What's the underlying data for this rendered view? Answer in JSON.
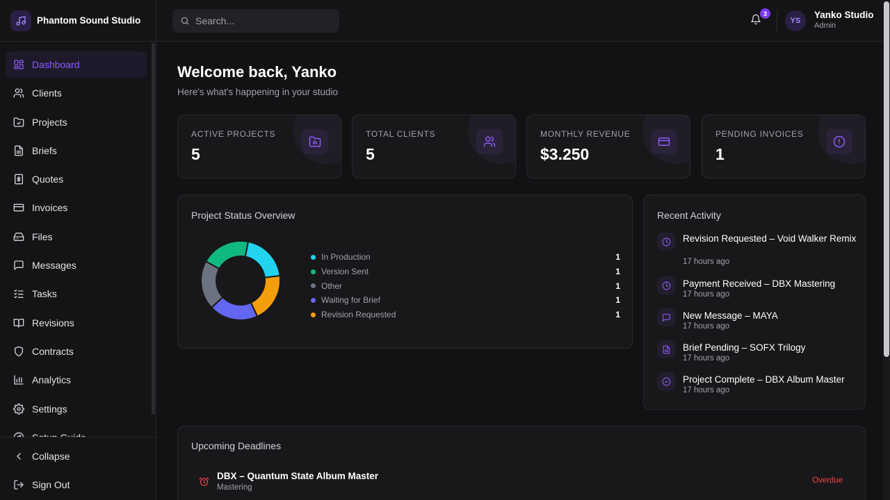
{
  "app": {
    "name": "Phantom Sound Studio"
  },
  "sidebar": {
    "items": [
      {
        "label": "Dashboard",
        "icon": "dashboard-icon",
        "active": true
      },
      {
        "label": "Clients",
        "icon": "users-icon"
      },
      {
        "label": "Projects",
        "icon": "folder-icon"
      },
      {
        "label": "Briefs",
        "icon": "document-icon"
      },
      {
        "label": "Quotes",
        "icon": "receipt-icon"
      },
      {
        "label": "Invoices",
        "icon": "credit-card-icon"
      },
      {
        "label": "Files",
        "icon": "hard-drive-icon"
      },
      {
        "label": "Messages",
        "icon": "message-icon"
      },
      {
        "label": "Tasks",
        "icon": "checklist-icon"
      },
      {
        "label": "Revisions",
        "icon": "book-icon"
      },
      {
        "label": "Contracts",
        "icon": "shield-icon"
      },
      {
        "label": "Analytics",
        "icon": "bar-chart-icon"
      },
      {
        "label": "Settings",
        "icon": "gear-icon"
      },
      {
        "label": "Setup Guide",
        "icon": "compass-icon"
      }
    ],
    "collapse_label": "Collapse",
    "signout_label": "Sign Out"
  },
  "topbar": {
    "search_placeholder": "Search...",
    "notification_count": "3",
    "user": {
      "initials": "YS",
      "name": "Yanko Studio",
      "role": "Admin"
    }
  },
  "main": {
    "welcome": "Welcome back, Yanko",
    "subtitle": "Here's what's happening in your studio",
    "stats": [
      {
        "label": "ACTIVE PROJECTS",
        "value": "5",
        "icon": "project-icon"
      },
      {
        "label": "TOTAL CLIENTS",
        "value": "5",
        "icon": "users-icon"
      },
      {
        "label": "MONTHLY REVENUE",
        "value": "$3.250",
        "icon": "credit-card-icon"
      },
      {
        "label": "PENDING INVOICES",
        "value": "1",
        "icon": "alert-circle-icon"
      }
    ],
    "status_overview": {
      "title": "Project Status Overview"
    },
    "recent_activity": {
      "title": "Recent Activity",
      "items": [
        {
          "title": "Revision Requested – Void Walker Remix",
          "time": "17 hours ago",
          "icon": "clock-icon"
        },
        {
          "title": "Payment Received – DBX Mastering",
          "time": "17 hours ago",
          "icon": "clock-icon"
        },
        {
          "title": "New Message – MAYA",
          "time": "17 hours ago",
          "icon": "message-icon"
        },
        {
          "title": "Brief Pending – SOFX Trilogy",
          "time": "17 hours ago",
          "icon": "document-icon"
        },
        {
          "title": "Project Complete – DBX Album Master",
          "time": "17 hours ago",
          "icon": "check-circle-icon"
        }
      ]
    },
    "deadlines": {
      "title": "Upcoming Deadlines",
      "items": [
        {
          "title": "DBX – Quantum State Album Master",
          "subtitle": "Mastering",
          "status": "Overdue"
        }
      ]
    }
  },
  "colors": {
    "accent": "#8b5cf6",
    "background": "#121214",
    "overdue": "#ef4444"
  },
  "chart_data": {
    "type": "pie",
    "donut": true,
    "categories": [
      "In Production",
      "Version Sent",
      "Other",
      "Waiting for Brief",
      "Revision Requested"
    ],
    "values": [
      1,
      1,
      1,
      1,
      1
    ],
    "colors": [
      "#22d3ee",
      "#10b981",
      "#6b7280",
      "#6366f1",
      "#f59e0b"
    ],
    "legend": "right"
  }
}
